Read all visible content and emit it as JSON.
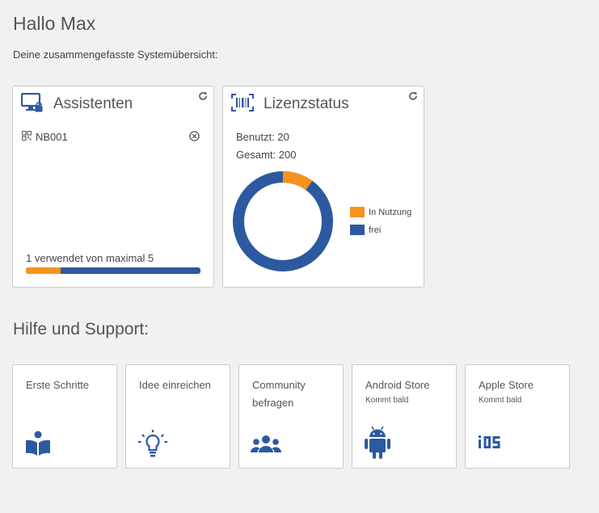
{
  "header": {
    "greeting": "Hallo Max",
    "subtitle": "Deine zusammengefasste Systemübersicht:"
  },
  "assistants_card": {
    "title": "Assistenten",
    "icon": "monitor-lock-icon",
    "items": [
      {
        "label": "NB001"
      }
    ],
    "usage_text": "1 verwendet von maximal 5",
    "used": 1,
    "max": 5
  },
  "license_card": {
    "title": "Lizenzstatus",
    "icon": "barcode-icon",
    "used_text": "Benutzt: 20",
    "total_text": "Gesamt: 200",
    "used": 20,
    "total": 200,
    "legend": [
      {
        "label": "In Nutzung",
        "color": "#f7921e"
      },
      {
        "label": "frei",
        "color": "#2c59a0"
      }
    ]
  },
  "support": {
    "title": "Hilfe und Support:",
    "tiles": [
      {
        "title": "Erste Schritte",
        "subtitle": "",
        "icon": "book-reader-icon"
      },
      {
        "title": "Idee einreichen",
        "subtitle": "",
        "icon": "lightbulb-icon"
      },
      {
        "title": "Community befragen",
        "subtitle": "",
        "icon": "users-icon"
      },
      {
        "title": "Android Store",
        "subtitle": "Kommt bald",
        "icon": "android-icon"
      },
      {
        "title": "Apple Store",
        "subtitle": "Kommt bald",
        "icon": "ios-icon"
      }
    ]
  },
  "colors": {
    "accent_blue": "#2c59a0",
    "accent_orange": "#f7921e"
  }
}
